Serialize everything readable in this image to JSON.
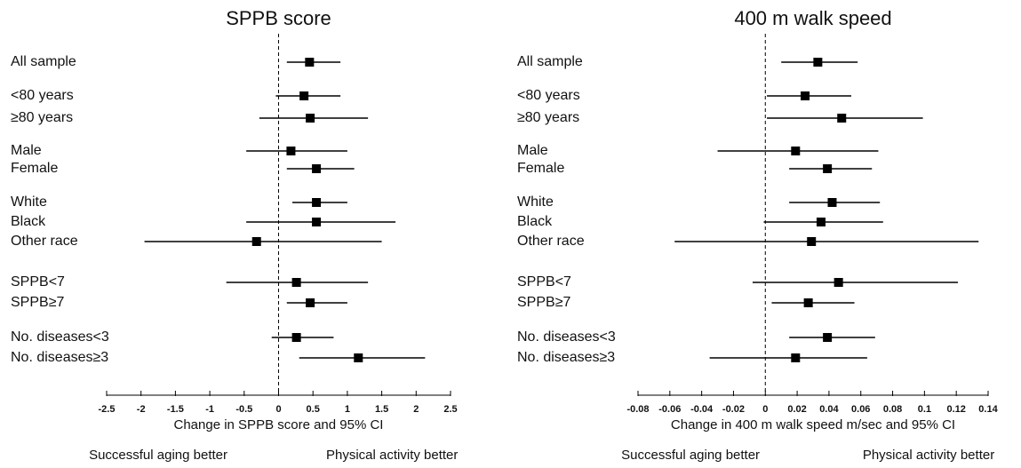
{
  "chart_data": [
    {
      "type": "forest",
      "title": "SPPB score",
      "categories": [
        "All sample",
        "<80 years",
        "≥80 years",
        "Male",
        "Female",
        "White",
        "Black",
        "Other race",
        "SPPB<7",
        "SPPB≥7",
        "No. diseases<3",
        "No. diseases≥3"
      ],
      "values": [
        0.45,
        0.37,
        0.46,
        0.18,
        0.55,
        0.55,
        0.55,
        -0.32,
        0.26,
        0.46,
        0.26,
        1.16
      ],
      "lower": [
        0.12,
        -0.04,
        -0.28,
        -0.47,
        0.12,
        0.2,
        -0.47,
        -1.95,
        -0.76,
        0.12,
        -0.1,
        0.3
      ],
      "upper": [
        0.9,
        0.9,
        1.3,
        1.0,
        1.1,
        1.0,
        1.7,
        1.5,
        1.3,
        1.0,
        0.8,
        2.13
      ],
      "xlim": [
        -2.5,
        2.5
      ],
      "xticks": [
        -2.5,
        -2,
        -1.5,
        -1,
        -0.5,
        0,
        0.5,
        1,
        1.5,
        2,
        2.5
      ],
      "xlabel": "Change in SPPB score and 95% CI",
      "annotations": [
        "Successful aging better",
        "Physical activity better"
      ],
      "color": "#000000"
    },
    {
      "type": "forest",
      "title": "400 m walk speed",
      "categories": [
        "All sample",
        "<80 years",
        "≥80 years",
        "Male",
        "Female",
        "White",
        "Black",
        "Other race",
        "SPPB<7",
        "SPPB≥7",
        "No. diseases<3",
        "No. diseases≥3"
      ],
      "values": [
        0.033,
        0.025,
        0.048,
        0.019,
        0.039,
        0.042,
        0.035,
        0.029,
        0.046,
        0.027,
        0.039,
        0.019
      ],
      "lower": [
        0.01,
        0.001,
        0.001,
        -0.03,
        0.015,
        0.015,
        -0.001,
        -0.057,
        -0.008,
        0.004,
        0.015,
        -0.035
      ],
      "upper": [
        0.058,
        0.054,
        0.099,
        0.071,
        0.067,
        0.072,
        0.074,
        0.134,
        0.121,
        0.056,
        0.069,
        0.064
      ],
      "xlim": [
        -0.08,
        0.14
      ],
      "xticks": [
        -0.08,
        -0.06,
        -0.04,
        -0.02,
        0,
        0.02,
        0.04,
        0.06,
        0.08,
        0.1,
        0.12,
        0.14
      ],
      "xlabel": "Change in 400 m walk speed m/sec and 95% CI",
      "annotations": [
        "Successful aging better",
        "Physical activity better"
      ],
      "color": "#000000"
    }
  ]
}
